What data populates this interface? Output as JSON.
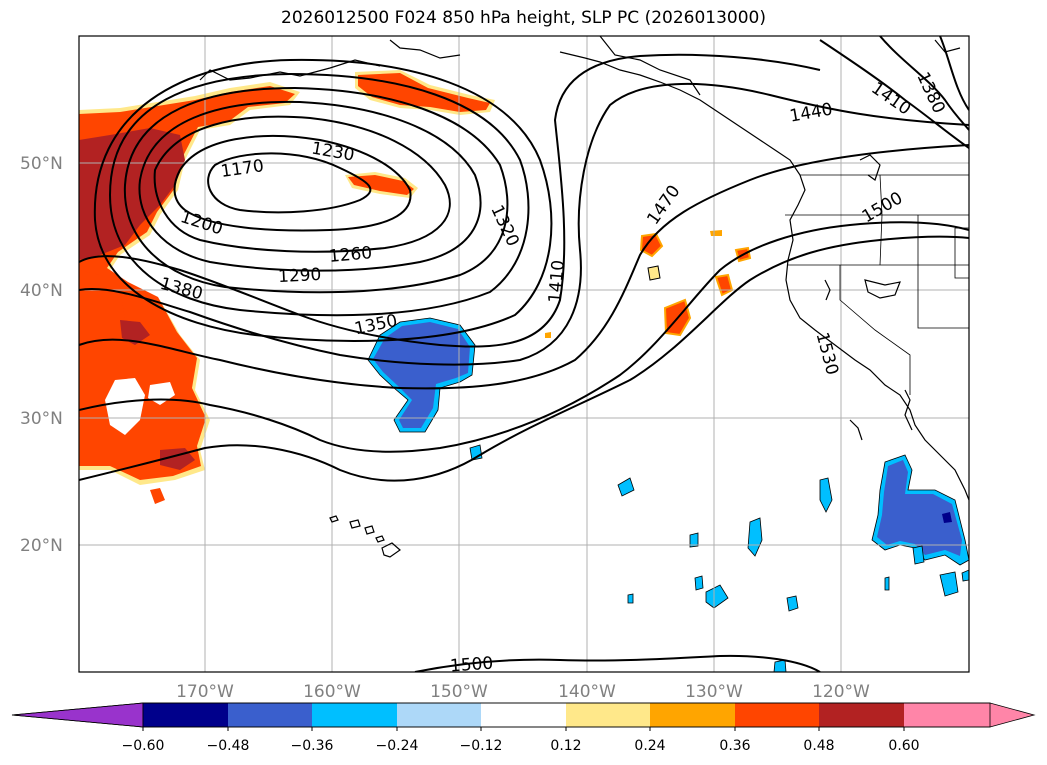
{
  "title": "2026012500 F024 850 hPa height, SLP PC (2026013000)",
  "latitude_labels": [
    "50°N",
    "40°N",
    "30°N",
    "20°N"
  ],
  "longitude_labels": [
    "170°W",
    "160°W",
    "150°W",
    "140°W",
    "130°W",
    "120°W"
  ],
  "contour_labels": [
    "1170",
    "1200",
    "1230",
    "1260",
    "1290",
    "1320",
    "1350",
    "1380",
    "1410",
    "1440",
    "1470",
    "1500",
    "1530",
    "1410",
    "1380",
    "1500"
  ],
  "colorbar": {
    "ticks": [
      "−0.60",
      "−0.48",
      "−0.36",
      "−0.24",
      "−0.12",
      "0.12",
      "0.24",
      "0.36",
      "0.48",
      "0.60"
    ],
    "colors": [
      "#9933cc",
      "#00008b",
      "#3a5fcd",
      "#00bfff",
      "#add8f8",
      "#ffffff",
      "#ffe88a",
      "#ffa500",
      "#ff4500",
      "#b22222",
      "#ff85a8",
      "#ff85a8"
    ]
  }
}
